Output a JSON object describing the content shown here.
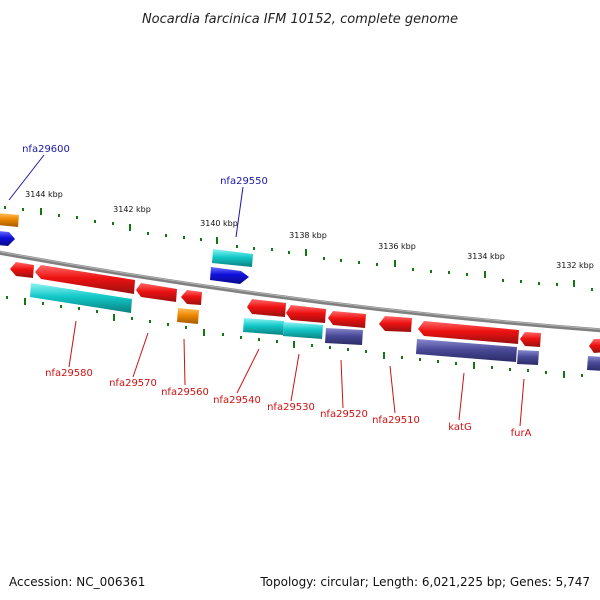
{
  "title": "Nocardia farcinica IFM 10152, complete genome",
  "footer": {
    "accession": "Accession: NC_006361",
    "stats": "Topology: circular; Length: 6,021,225 bp; Genes: 5,747"
  },
  "scale_labels": [
    "3144 kbp",
    "3142 kbp",
    "3140 kbp",
    "3138 kbp",
    "3136 kbp",
    "3134 kbp",
    "3132 kbp"
  ],
  "gene_labels": {
    "forward": [
      "nfa29600",
      "nfa29550"
    ],
    "reverse": [
      "nfa29580",
      "nfa29570",
      "nfa29560",
      "nfa29540",
      "nfa29530",
      "nfa29520",
      "nfa29510",
      "katG",
      "furA"
    ]
  },
  "colors": {
    "gene": "#ee1111",
    "cds_cyan": "#11cccc",
    "cds_slate": "#4a4a99",
    "cds_orange": "#ee8800",
    "cds_blue": "#1111dd",
    "backbone": "#888888",
    "tick": "#117711",
    "label_forward": "#1a1aa8",
    "label_reverse": "#cc1111"
  }
}
